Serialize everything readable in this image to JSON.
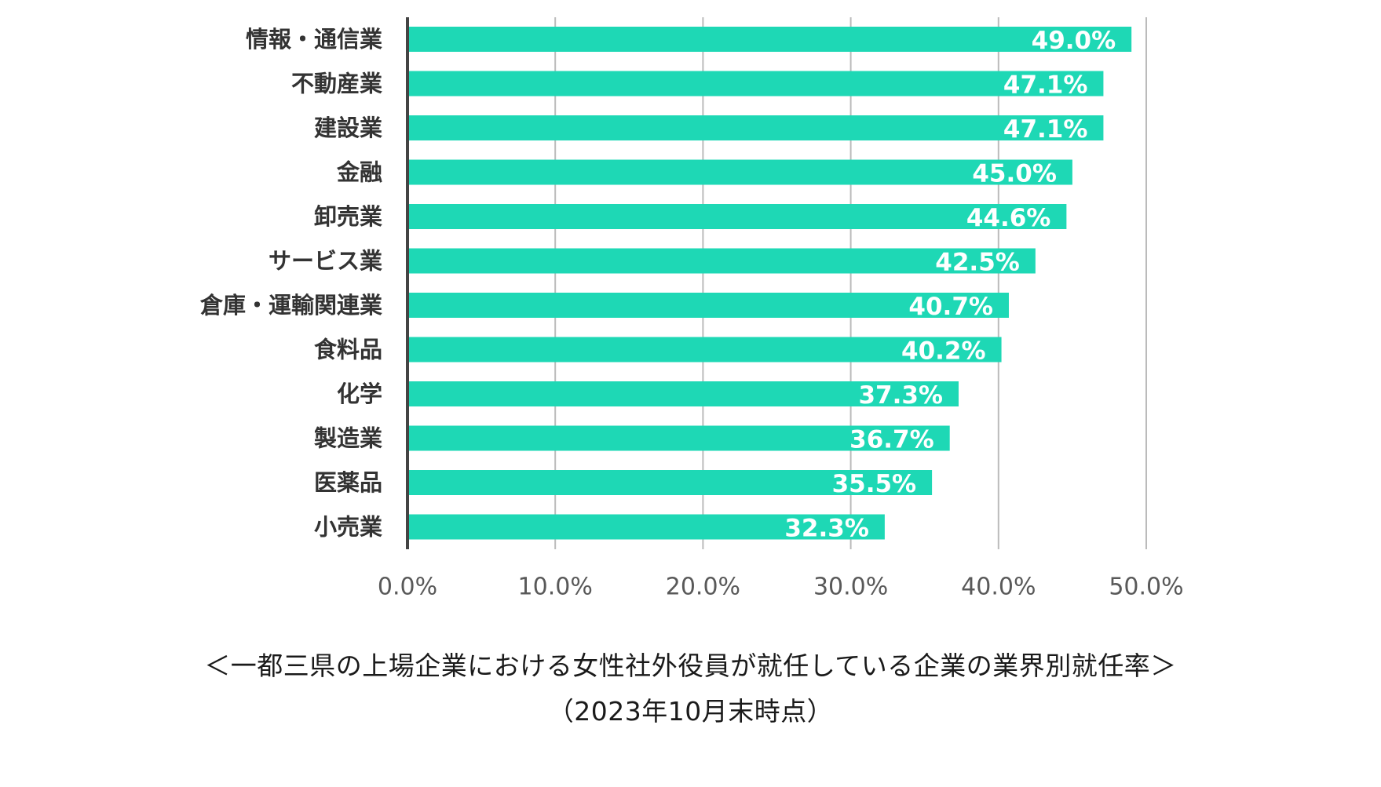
{
  "chart_data": {
    "type": "bar",
    "orientation": "horizontal",
    "categories": [
      "情報・通信業",
      "不動産業",
      "建設業",
      "金融",
      "卸売業",
      "サービス業",
      "倉庫・運輸関連業",
      "食料品",
      "化学",
      "製造業",
      "医薬品",
      "小売業"
    ],
    "values": [
      49.0,
      47.1,
      47.1,
      45.0,
      44.6,
      42.5,
      40.7,
      40.2,
      37.3,
      36.7,
      35.5,
      32.3
    ],
    "data_labels": [
      "49.0%",
      "47.1%",
      "47.1%",
      "45.0%",
      "44.6%",
      "42.5%",
      "40.7%",
      "40.2%",
      "37.3%",
      "36.7%",
      "35.5%",
      "32.3%"
    ],
    "x_ticks": [
      0,
      10,
      20,
      30,
      40,
      50
    ],
    "x_tick_labels": [
      "0.0%",
      "10.0%",
      "20.0%",
      "30.0%",
      "40.0%",
      "50.0%"
    ],
    "xlim": [
      0,
      50
    ],
    "grid": "vertical",
    "legend": "none",
    "bar_color": "#1ed8b5",
    "label_color": "#ffffff",
    "grid_color": "#bbbbbb",
    "axis_color": "#444444"
  },
  "caption": {
    "line1": "＜一都三県の上場企業における女性社外役員が就任している企業の業界別就任率＞",
    "line2": "（2023年10月末時点）"
  }
}
